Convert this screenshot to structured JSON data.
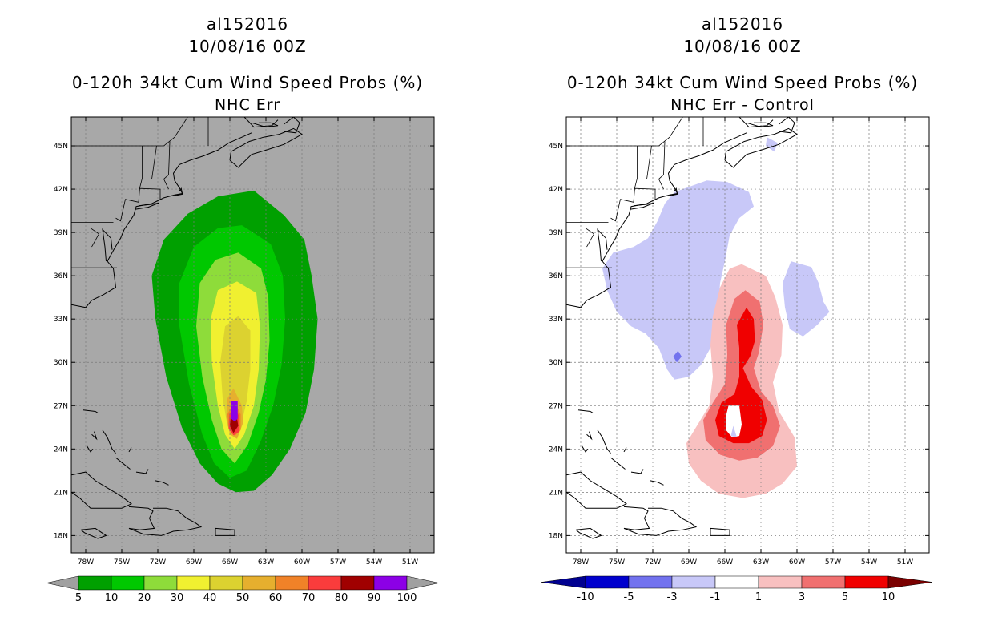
{
  "panels": [
    {
      "storm_id": "al152016",
      "datetime": "10/08/16 00Z",
      "product": "0-120h 34kt Cum Wind Speed Probs (%)",
      "subtitle": "NHC Err",
      "background": "#a8a8a8",
      "colorbar": {
        "labels": [
          "5",
          "10",
          "20",
          "30",
          "40",
          "50",
          "60",
          "70",
          "80",
          "90",
          "100"
        ],
        "colors": [
          "#00a000",
          "#00c800",
          "#8edc3a",
          "#f0f030",
          "#dcd230",
          "#e6af2e",
          "#f08228",
          "#fa3c3c",
          "#a00000",
          "#8c00e6"
        ]
      }
    },
    {
      "storm_id": "al152016",
      "datetime": "10/08/16 00Z",
      "product": "0-120h 34kt Cum Wind Speed Probs (%)",
      "subtitle": "NHC Err - Control",
      "background": "#ffffff",
      "colorbar": {
        "labels": [
          "-10",
          "-5",
          "-3",
          "-1",
          "1",
          "3",
          "5",
          "10"
        ],
        "colors": [
          "#0000cd",
          "#7272ee",
          "#c8c8f8",
          "#ffffff",
          "#f8c0c0",
          "#f07070",
          "#f00000"
        ],
        "under_color": "#000090",
        "over_color": "#7a0000"
      }
    }
  ],
  "axes": {
    "lat_labels": [
      "45N",
      "42N",
      "39N",
      "36N",
      "33N",
      "30N",
      "27N",
      "24N",
      "21N",
      "18N"
    ],
    "lon_labels": [
      "78W",
      "75W",
      "72W",
      "69W",
      "66W",
      "63W",
      "60W",
      "57W",
      "54W",
      "51W"
    ]
  }
}
